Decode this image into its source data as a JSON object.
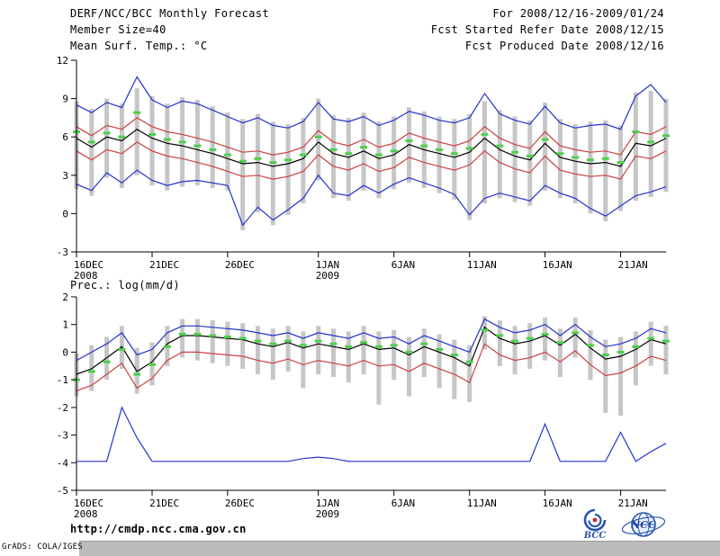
{
  "header": {
    "title": "DERF/NCC/BCC Monthly Forecast",
    "member_size": "Member Size=40",
    "date_range": "For 2008/12/16-2009/01/24",
    "refer_date": "Fcst Started Refer Date 2008/12/15",
    "produced_date": "Fcst Produced Date 2008/12/16"
  },
  "footer": {
    "url": "http://cmdp.ncc.cma.gov.cn",
    "credit": "GrADS: COLA/IGES",
    "logos": [
      {
        "label": "BCC"
      },
      {
        "label": "NCC"
      }
    ]
  },
  "colors": {
    "ensemble_spread": "#c6c6c6",
    "envelope_blue": "#2233cc",
    "quartile_red": "#cc4040",
    "median_black": "#000000",
    "mean_green": "#4ecf4e"
  },
  "chart_data": [
    {
      "type": "line",
      "title": "Mean Surf. Temp.: °C",
      "xlabel": "",
      "ylabel": "°C",
      "ylim": [
        -3,
        12
      ],
      "yticks": [
        12,
        9,
        6,
        3,
        0,
        -3
      ],
      "n_points": 40,
      "grid": false,
      "legend": "none",
      "xticks": [
        {
          "i": 0,
          "label": "16DEC",
          "sub": "2008"
        },
        {
          "i": 5,
          "label": "21DEC"
        },
        {
          "i": 10,
          "label": "26DEC"
        },
        {
          "i": 16,
          "label": "1JAN",
          "sub": "2009"
        },
        {
          "i": 21,
          "label": "6JAN"
        },
        {
          "i": 26,
          "label": "11JAN"
        },
        {
          "i": 31,
          "label": "16JAN"
        },
        {
          "i": 36,
          "label": "21JAN"
        }
      ],
      "series": [
        {
          "name": "ensemble-spread",
          "kind": "bar",
          "color": "#c6c6c6",
          "low": [
            1.9,
            1.4,
            2.8,
            2.0,
            3.0,
            2.2,
            1.8,
            2.1,
            2.2,
            2.0,
            1.8,
            -1.3,
            0.1,
            -0.9,
            -0.1,
            0.8,
            2.6,
            1.2,
            1.0,
            1.8,
            1.2,
            1.9,
            2.4,
            2.0,
            1.6,
            1.1,
            -0.5,
            0.8,
            1.2,
            0.9,
            0.6,
            1.8,
            1.2,
            0.8,
            0.0,
            -0.6,
            0.2,
            1.0,
            1.3,
            1.7
          ],
          "high": [
            8.8,
            8.2,
            9.0,
            8.6,
            9.8,
            9.2,
            8.6,
            9.1,
            8.9,
            8.4,
            7.9,
            7.4,
            7.8,
            7.2,
            7.0,
            7.5,
            9.0,
            7.7,
            7.5,
            7.9,
            7.2,
            7.6,
            8.3,
            8.0,
            7.6,
            7.4,
            7.8,
            8.8,
            8.1,
            7.6,
            7.3,
            8.7,
            7.4,
            7.0,
            7.2,
            7.3,
            6.9,
            9.5,
            9.6,
            9.0
          ]
        },
        {
          "name": "ensemble-max",
          "kind": "line",
          "color": "#2233cc",
          "values": [
            8.5,
            7.9,
            8.7,
            8.3,
            10.7,
            8.9,
            8.3,
            8.8,
            8.6,
            8.1,
            7.6,
            7.1,
            7.5,
            6.9,
            6.7,
            7.2,
            8.7,
            7.4,
            7.2,
            7.6,
            6.9,
            7.3,
            8.0,
            7.7,
            7.3,
            7.1,
            7.5,
            9.4,
            7.8,
            7.3,
            7.0,
            8.4,
            7.1,
            6.7,
            6.9,
            7.0,
            6.6,
            9.2,
            10.1,
            8.7
          ]
        },
        {
          "name": "ensemble-min",
          "kind": "line",
          "color": "#2233cc",
          "values": [
            2.3,
            1.8,
            3.2,
            2.4,
            3.4,
            2.6,
            2.2,
            2.5,
            2.6,
            2.4,
            2.2,
            -0.9,
            0.5,
            -0.5,
            0.3,
            1.2,
            3.0,
            1.6,
            1.4,
            2.2,
            1.6,
            2.3,
            2.8,
            2.4,
            2.0,
            1.5,
            -0.1,
            1.2,
            1.6,
            1.3,
            1.0,
            2.2,
            1.6,
            1.2,
            0.4,
            -0.2,
            0.6,
            1.4,
            1.7,
            2.1
          ]
        },
        {
          "name": "upper-quartile",
          "kind": "line",
          "color": "#cc4040",
          "values": [
            6.8,
            6.1,
            6.9,
            6.6,
            7.5,
            6.8,
            6.4,
            6.2,
            5.9,
            5.6,
            5.2,
            4.8,
            4.9,
            4.6,
            4.8,
            5.2,
            6.5,
            5.6,
            5.3,
            5.8,
            5.2,
            5.5,
            6.3,
            5.9,
            5.6,
            5.3,
            5.7,
            6.8,
            5.9,
            5.4,
            5.1,
            6.4,
            5.3,
            5.0,
            4.8,
            4.9,
            4.6,
            6.4,
            6.2,
            6.8
          ]
        },
        {
          "name": "lower-quartile",
          "kind": "line",
          "color": "#cc4040",
          "values": [
            4.9,
            4.2,
            5.0,
            4.7,
            5.6,
            4.9,
            4.5,
            4.3,
            4.0,
            3.7,
            3.3,
            2.9,
            3.0,
            2.7,
            2.9,
            3.3,
            4.6,
            3.7,
            3.4,
            3.9,
            3.3,
            3.6,
            4.4,
            4.0,
            3.7,
            3.4,
            3.8,
            4.9,
            4.0,
            3.5,
            3.2,
            4.5,
            3.4,
            3.1,
            2.9,
            3.0,
            2.7,
            4.5,
            4.3,
            4.9
          ]
        },
        {
          "name": "ensemble-median",
          "kind": "line",
          "color": "#000000",
          "values": [
            5.9,
            5.2,
            6.0,
            5.7,
            6.6,
            5.9,
            5.5,
            5.3,
            5.0,
            4.7,
            4.3,
            3.9,
            4.0,
            3.7,
            3.9,
            4.3,
            5.6,
            4.7,
            4.4,
            4.9,
            4.3,
            4.6,
            5.4,
            5.0,
            4.7,
            4.4,
            4.8,
            5.9,
            5.0,
            4.5,
            4.2,
            5.5,
            4.4,
            4.1,
            3.9,
            4.0,
            3.7,
            5.5,
            5.3,
            5.9
          ]
        },
        {
          "name": "ensemble-mean",
          "kind": "dash",
          "color": "#4ecf4e",
          "values": [
            6.4,
            5.6,
            6.3,
            6.0,
            7.9,
            6.2,
            5.8,
            5.6,
            5.3,
            5.0,
            4.6,
            4.1,
            4.3,
            4.0,
            4.2,
            4.6,
            6.0,
            5.0,
            4.7,
            5.2,
            4.6,
            4.9,
            5.7,
            5.3,
            5.0,
            4.7,
            5.1,
            6.2,
            5.3,
            4.8,
            4.5,
            5.8,
            4.7,
            4.4,
            4.2,
            4.3,
            4.0,
            6.4,
            5.6,
            6.1
          ]
        }
      ]
    },
    {
      "type": "line",
      "title": "Prec.: log(mm/d)",
      "xlabel": "",
      "ylabel": "log(mm/d)",
      "ylim": [
        -5,
        2
      ],
      "yticks": [
        2,
        1,
        0,
        -1,
        -2,
        -3,
        -4,
        -5
      ],
      "n_points": 40,
      "grid": false,
      "legend": "none",
      "xticks": [
        {
          "i": 0,
          "label": "16DEC",
          "sub": "2008"
        },
        {
          "i": 5,
          "label": "21DEC"
        },
        {
          "i": 10,
          "label": "26DEC"
        },
        {
          "i": 16,
          "label": "1JAN",
          "sub": "2009"
        },
        {
          "i": 21,
          "label": "6JAN"
        },
        {
          "i": 26,
          "label": "11JAN"
        },
        {
          "i": 31,
          "label": "16JAN"
        },
        {
          "i": 36,
          "label": "21JAN"
        }
      ],
      "series": [
        {
          "name": "ensemble-spread",
          "kind": "bar",
          "color": "#c6c6c6",
          "low": [
            -1.6,
            -1.4,
            -1.0,
            -0.6,
            -1.5,
            -1.2,
            -0.5,
            -0.2,
            -0.3,
            -0.4,
            -0.5,
            -0.6,
            -0.8,
            -1.0,
            -0.7,
            -1.3,
            -0.8,
            -0.9,
            -1.1,
            -0.8,
            -1.9,
            -1.0,
            -1.6,
            -0.9,
            -1.3,
            -1.7,
            -1.8,
            0.1,
            -0.5,
            -0.8,
            -0.6,
            -0.3,
            -0.9,
            -0.2,
            -1.0,
            -2.2,
            -2.3,
            -1.2,
            -0.5,
            -0.8
          ],
          "high": [
            -0.05,
            0.25,
            0.55,
            0.95,
            0.15,
            0.35,
            0.95,
            1.2,
            1.2,
            1.15,
            1.1,
            1.05,
            0.95,
            0.85,
            0.95,
            0.75,
            0.95,
            0.85,
            0.75,
            0.95,
            0.75,
            0.8,
            0.55,
            0.85,
            0.65,
            0.45,
            0.25,
            1.3,
            1.15,
            0.95,
            1.05,
            1.25,
            0.85,
            1.25,
            0.8,
            0.45,
            0.55,
            0.75,
            1.1,
            0.95
          ]
        },
        {
          "name": "ensemble-max",
          "kind": "line",
          "color": "#2233cc",
          "values": [
            -0.3,
            0.0,
            0.3,
            0.7,
            -0.1,
            0.1,
            0.7,
            0.95,
            0.95,
            0.9,
            0.85,
            0.8,
            0.7,
            0.6,
            0.7,
            0.5,
            0.7,
            0.6,
            0.5,
            0.7,
            0.5,
            0.55,
            0.3,
            0.6,
            0.4,
            0.2,
            0.0,
            1.2,
            0.9,
            0.7,
            0.8,
            1.0,
            0.6,
            1.0,
            0.55,
            0.2,
            0.3,
            0.5,
            0.85,
            0.7
          ]
        },
        {
          "name": "lower-quartile",
          "kind": "line",
          "color": "#cc4040",
          "values": [
            -1.4,
            -1.2,
            -0.8,
            -0.4,
            -1.3,
            -0.95,
            -0.3,
            0.0,
            0.0,
            -0.05,
            -0.1,
            -0.15,
            -0.3,
            -0.4,
            -0.25,
            -0.45,
            -0.3,
            -0.4,
            -0.5,
            -0.3,
            -0.5,
            -0.45,
            -0.7,
            -0.4,
            -0.6,
            -0.8,
            -1.1,
            0.3,
            -0.1,
            -0.3,
            -0.2,
            0.0,
            -0.35,
            0.05,
            -0.45,
            -0.85,
            -0.75,
            -0.5,
            -0.15,
            -0.3
          ]
        },
        {
          "name": "ensemble-median",
          "kind": "line",
          "color": "#000000",
          "values": [
            -0.8,
            -0.6,
            -0.2,
            0.2,
            -0.7,
            -0.35,
            0.3,
            0.6,
            0.6,
            0.55,
            0.5,
            0.45,
            0.3,
            0.2,
            0.35,
            0.15,
            0.3,
            0.2,
            0.1,
            0.3,
            0.1,
            0.15,
            -0.1,
            0.2,
            0.0,
            -0.2,
            -0.5,
            0.9,
            0.5,
            0.3,
            0.4,
            0.6,
            0.25,
            0.65,
            0.15,
            -0.25,
            -0.15,
            0.1,
            0.45,
            0.3
          ]
        },
        {
          "name": "dry-day-line",
          "kind": "line",
          "color": "#2233cc",
          "values": [
            -3.95,
            -3.95,
            -3.95,
            -2.0,
            -3.1,
            -3.95,
            -3.95,
            -3.95,
            -3.95,
            -3.95,
            -3.95,
            -3.95,
            -3.95,
            -3.95,
            -3.95,
            -3.85,
            -3.8,
            -3.85,
            -3.95,
            -3.95,
            -3.95,
            -3.95,
            -3.95,
            -3.95,
            -3.95,
            -3.95,
            -3.95,
            -3.95,
            -3.95,
            -3.95,
            -3.95,
            -2.6,
            -3.95,
            -3.95,
            -3.95,
            -3.95,
            -2.9,
            -3.95,
            -3.6,
            -3.3
          ]
        },
        {
          "name": "ensemble-mean",
          "kind": "dash",
          "color": "#4ecf4e",
          "values": [
            -1.0,
            -0.7,
            -0.35,
            0.1,
            -0.8,
            -0.45,
            0.2,
            0.65,
            0.65,
            0.6,
            0.55,
            0.5,
            0.4,
            0.3,
            0.4,
            0.25,
            0.4,
            0.3,
            0.2,
            0.35,
            0.2,
            0.25,
            0.0,
            0.3,
            0.1,
            -0.1,
            -0.35,
            0.8,
            0.6,
            0.4,
            0.5,
            0.65,
            0.35,
            0.7,
            0.25,
            -0.1,
            0.0,
            0.2,
            0.5,
            0.4
          ]
        }
      ]
    }
  ]
}
